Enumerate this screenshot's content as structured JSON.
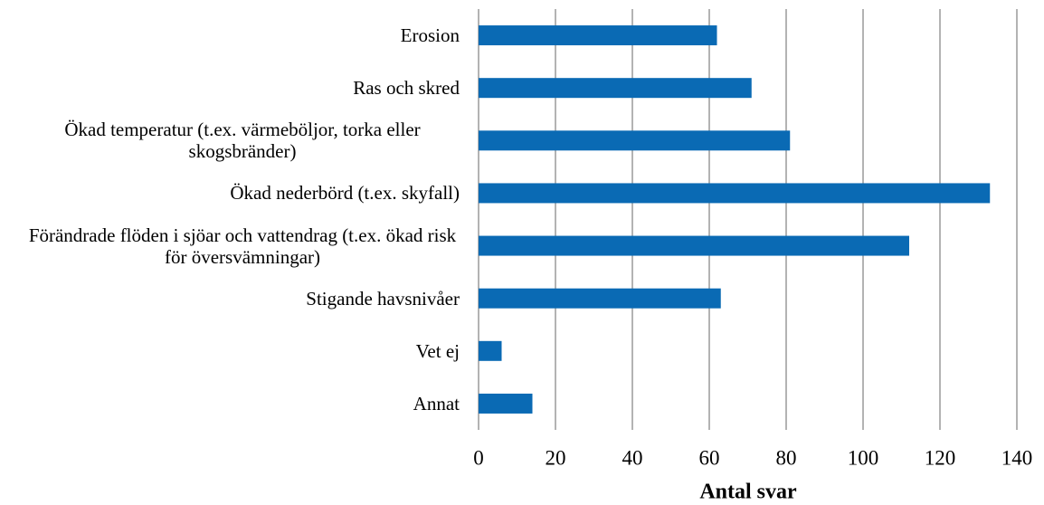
{
  "chart_data": {
    "type": "bar",
    "orientation": "horizontal",
    "x_label": "Antal svar",
    "categories": [
      "Erosion",
      "Ras och skred",
      "Ökad temperatur (t.ex. värmeböljor, torka eller skogsbränder)",
      "Ökad nederbörd (t.ex. skyfall)",
      "Förändrade flöden i sjöar och vattendrag (t.ex. ökad risk för översvämningar)",
      "Stigande havsnivåer",
      "Vet ej",
      "Annat"
    ],
    "values": [
      62,
      71,
      81,
      133,
      112,
      63,
      6,
      14
    ],
    "color": "#0a6ab4",
    "xlim": [
      0,
      140
    ],
    "xticks": [
      0,
      20,
      40,
      60,
      80,
      100,
      120,
      140
    ],
    "grid": true
  }
}
